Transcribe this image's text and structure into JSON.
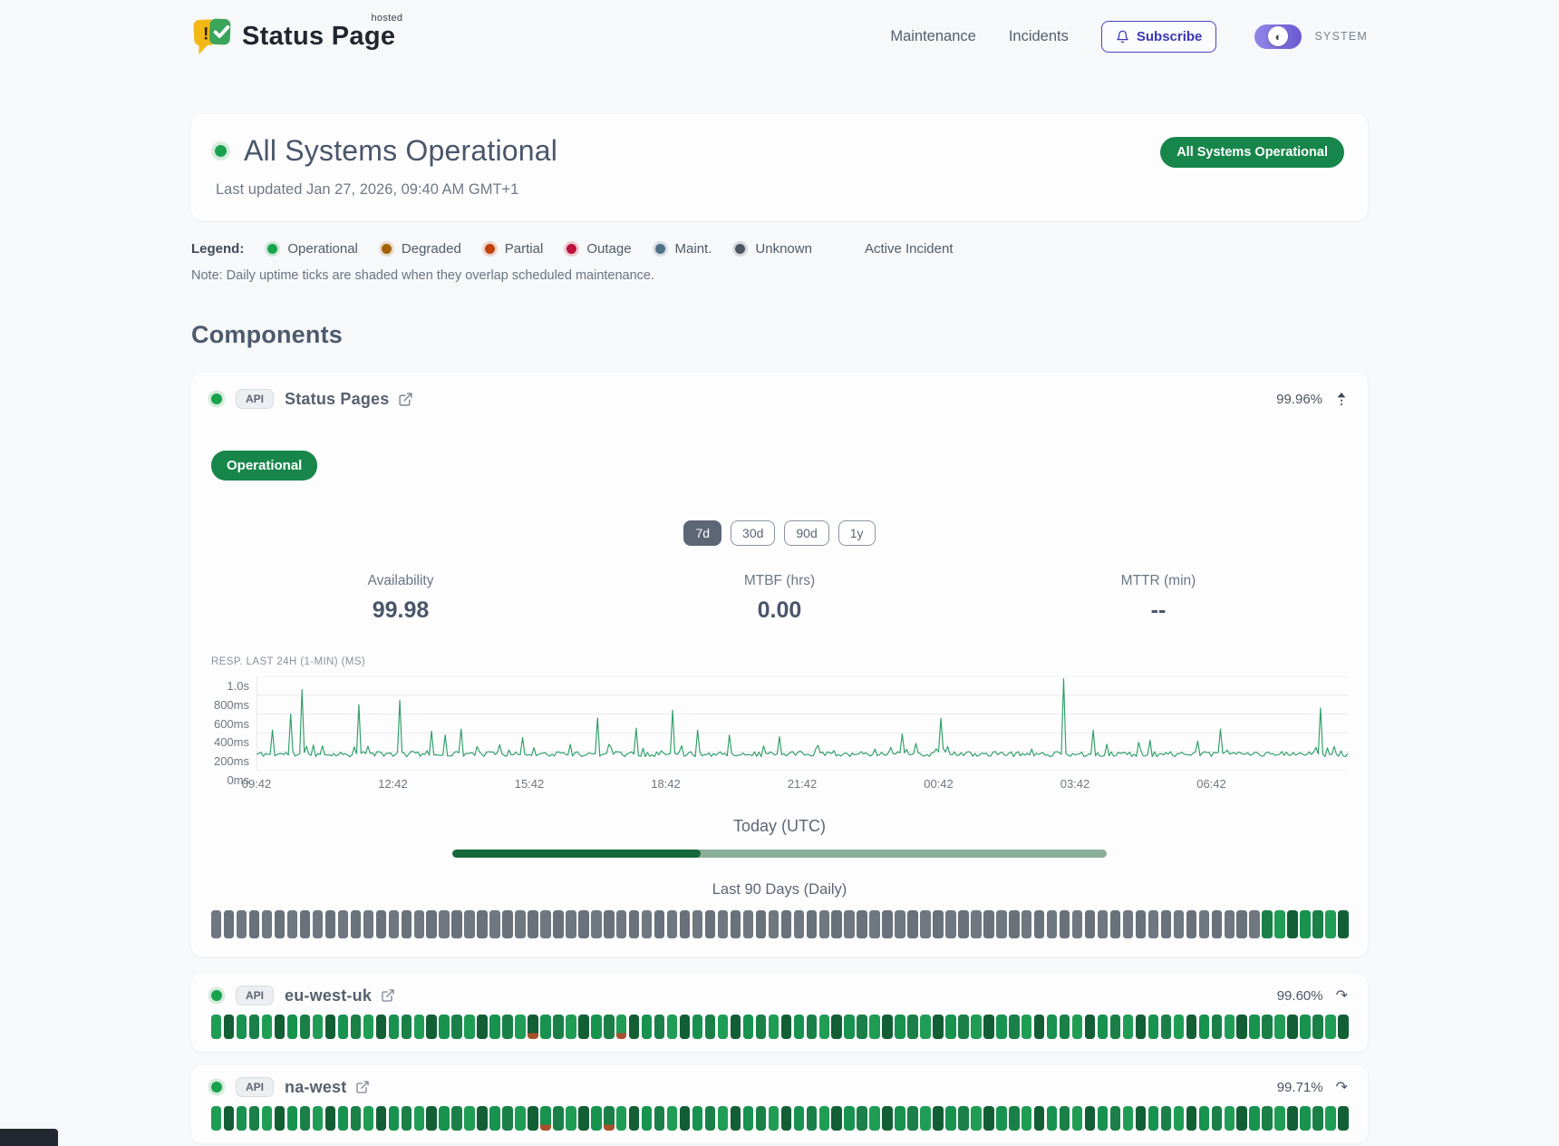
{
  "header": {
    "brand": {
      "title": "Status Page",
      "superscript": "hosted"
    },
    "nav": [
      {
        "label": "Maintenance"
      },
      {
        "label": "Incidents"
      }
    ],
    "subscribe_label": "Subscribe",
    "theme_label": "SYSTEM"
  },
  "hero": {
    "title": "All Systems Operational",
    "last_updated": "Last updated Jan 27, 2026, 09:40 AM GMT+1",
    "badge": "All Systems Operational"
  },
  "legend": {
    "label": "Legend:",
    "items": [
      {
        "label": "Operational",
        "color": "#16a34a"
      },
      {
        "label": "Degraded",
        "color": "#a16207"
      },
      {
        "label": "Partial",
        "color": "#c2410c"
      },
      {
        "label": "Outage",
        "color": "#be123c"
      },
      {
        "label": "Maint.",
        "color": "#4f7086"
      },
      {
        "label": "Unknown",
        "color": "#4b5563"
      }
    ],
    "active_incident_label": "Active Incident",
    "note": "Note: Daily uptime ticks are shaded when they overlap scheduled maintenance."
  },
  "components_title": "Components",
  "components": [
    {
      "tag": "API",
      "name": "Status Pages",
      "uptime": "99.96%",
      "status": "Operational",
      "expanded": true,
      "history": "uuuuuuuuuuuuuuuuuuuuuuuuuuuuuuuuuuuuuuuuuuuuuuuuuuuuuuuuuuuuuuuuuuuuuuuuuuuuuuuuuuuooooooo"
    },
    {
      "tag": "API",
      "name": "eu-west-uk",
      "uptime": "99.60%",
      "expanded": false,
      "history": "ooooooooooooooooooooooooopoooooopooooooooooooooooooooooooooooooooooooooooooooooooooooooooo"
    },
    {
      "tag": "API",
      "name": "na-west",
      "uptime": "99.71%",
      "expanded": false,
      "history": "oooooooooooooooooooooooooopoooopoooooooooooooooooooooooooooooooooooooooooooooooooooooooooo"
    }
  ],
  "detail": {
    "ranges": [
      "7d",
      "30d",
      "90d",
      "1y"
    ],
    "active_range": "7d",
    "metrics": [
      {
        "label": "Availability",
        "value": "99.98"
      },
      {
        "label": "MTBF (hrs)",
        "value": "0.00"
      },
      {
        "label": "MTTR (min)",
        "value": "--"
      }
    ],
    "today_label": "Today (UTC)",
    "today_progress": 0.38,
    "history_label": "Last 90 Days (Daily)"
  },
  "colors": {
    "tick_green_shades": [
      "#1a8047",
      "#17934f",
      "#135f35",
      "#1f9d55"
    ],
    "tick_gray_shades": [
      "#6f7781",
      "#69717b"
    ],
    "tick_partial_bottom": "#a8502c",
    "today_done": "#15683a",
    "today_rest": "#8aaf97"
  },
  "chart_data": {
    "type": "line",
    "title": "RESP. LAST 24H (1-MIN) (MS)",
    "x_start": "09:42",
    "x_ticks": [
      "09:42",
      "12:42",
      "15:42",
      "18:42",
      "21:42",
      "00:42",
      "03:42",
      "06:42"
    ],
    "x_span_minutes": 1440,
    "y_ticks": [
      "1.0s",
      "800ms",
      "600ms",
      "400ms",
      "200ms",
      "0ms"
    ],
    "y_tick_values_ms": [
      1000,
      800,
      600,
      400,
      200,
      0
    ],
    "y_max_ms": 1000,
    "baseline_ms": 170,
    "noise_ms": 55,
    "line_color": "#2f9e68",
    "grid_color": "#e7eaee",
    "spikes": [
      {
        "t": "10:02",
        "v": 430
      },
      {
        "t": "10:26",
        "v": 600
      },
      {
        "t": "10:41",
        "v": 860
      },
      {
        "t": "11:56",
        "v": 700
      },
      {
        "t": "12:52",
        "v": 745
      },
      {
        "t": "13:32",
        "v": 420
      },
      {
        "t": "13:50",
        "v": 380
      },
      {
        "t": "14:12",
        "v": 440
      },
      {
        "t": "15:33",
        "v": 350
      },
      {
        "t": "17:12",
        "v": 560
      },
      {
        "t": "18:03",
        "v": 450
      },
      {
        "t": "18:52",
        "v": 640
      },
      {
        "t": "19:25",
        "v": 430
      },
      {
        "t": "20:05",
        "v": 380
      },
      {
        "t": "21:12",
        "v": 360
      },
      {
        "t": "23:55",
        "v": 390
      },
      {
        "t": "00:45",
        "v": 555
      },
      {
        "t": "03:28",
        "v": 975
      },
      {
        "t": "04:05",
        "v": 430
      },
      {
        "t": "06:55",
        "v": 440
      },
      {
        "t": "09:05",
        "v": 665
      }
    ]
  }
}
